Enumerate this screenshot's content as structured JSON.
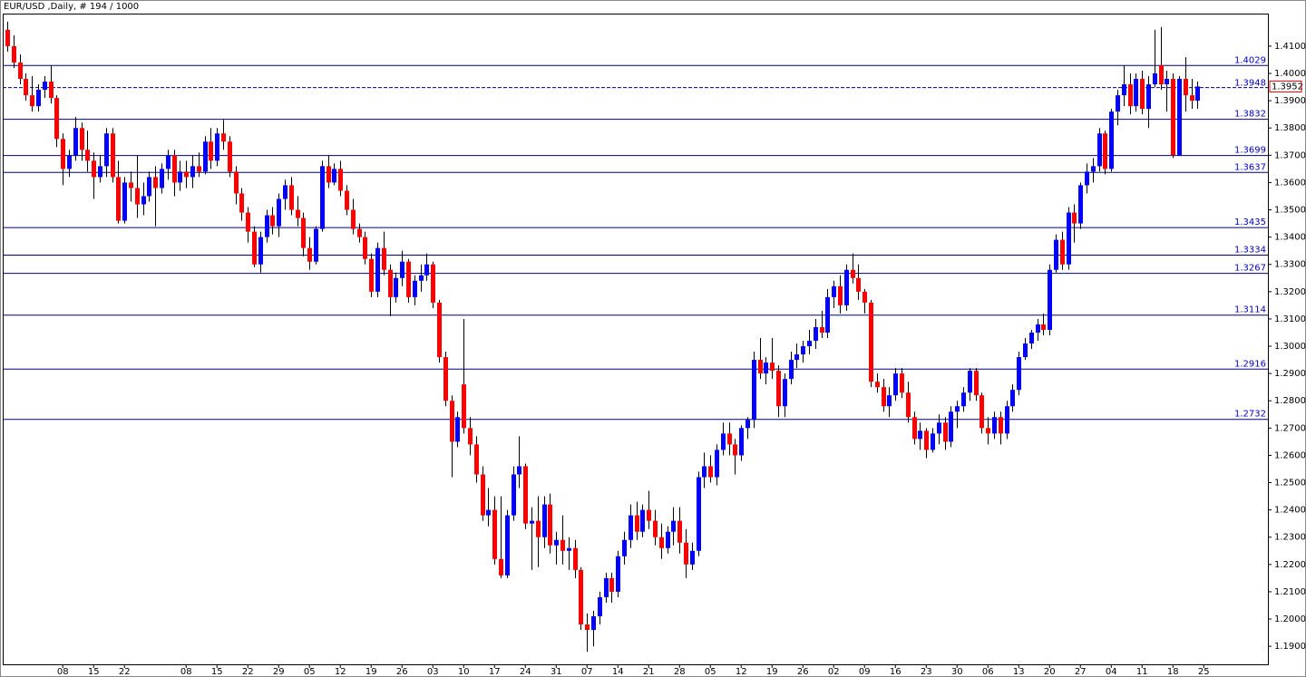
{
  "chart_data": {
    "type": "candlestick",
    "title": "EUR/USD ,Daily, # 194 / 1000",
    "up_color": "#0000ff",
    "down_color": "#ff0000",
    "wick_color": "#000000",
    "level_color": "#00007f",
    "ylim": [
      1.1834,
      1.4216
    ],
    "xlim": [
      -0.74,
      204.4
    ],
    "yticks": [
      {
        "value": 1.41,
        "label": "1.4100"
      },
      {
        "value": 1.4,
        "label": "1.4000"
      },
      {
        "value": 1.39,
        "label": "1.3900"
      },
      {
        "value": 1.38,
        "label": "1.3800"
      },
      {
        "value": 1.37,
        "label": "1.3700"
      },
      {
        "value": 1.36,
        "label": "1.3600"
      },
      {
        "value": 1.35,
        "label": "1.3500"
      },
      {
        "value": 1.34,
        "label": "1.3400"
      },
      {
        "value": 1.33,
        "label": "1.3300"
      },
      {
        "value": 1.32,
        "label": "1.3200"
      },
      {
        "value": 1.31,
        "label": "1.3100"
      },
      {
        "value": 1.3,
        "label": "1.3000"
      },
      {
        "value": 1.29,
        "label": "1.2900"
      },
      {
        "value": 1.28,
        "label": "1.2800"
      },
      {
        "value": 1.27,
        "label": "1.2700"
      },
      {
        "value": 1.26,
        "label": "1.2600"
      },
      {
        "value": 1.25,
        "label": "1.2500"
      },
      {
        "value": 1.24,
        "label": "1.2400"
      },
      {
        "value": 1.23,
        "label": "1.2300"
      },
      {
        "value": 1.22,
        "label": "1.2200"
      },
      {
        "value": 1.21,
        "label": "1.2100"
      },
      {
        "value": 1.2,
        "label": "1.2000"
      },
      {
        "value": 1.19,
        "label": "1.1900"
      }
    ],
    "xticks": [
      {
        "value": 9,
        "label": "08"
      },
      {
        "value": 14,
        "label": "15"
      },
      {
        "value": 19,
        "label": "22"
      },
      {
        "value": 29,
        "label": "08"
      },
      {
        "value": 34,
        "label": "15"
      },
      {
        "value": 39,
        "label": "22"
      },
      {
        "value": 44,
        "label": "29"
      },
      {
        "value": 49,
        "label": "05"
      },
      {
        "value": 54,
        "label": "12"
      },
      {
        "value": 59,
        "label": "19"
      },
      {
        "value": 64,
        "label": "26"
      },
      {
        "value": 69,
        "label": "03"
      },
      {
        "value": 74,
        "label": "10"
      },
      {
        "value": 79,
        "label": "17"
      },
      {
        "value": 84,
        "label": "24"
      },
      {
        "value": 89,
        "label": "31"
      },
      {
        "value": 94,
        "label": "07"
      },
      {
        "value": 99,
        "label": "14"
      },
      {
        "value": 104,
        "label": "21"
      },
      {
        "value": 109,
        "label": "28"
      },
      {
        "value": 114,
        "label": "05"
      },
      {
        "value": 119,
        "label": "12"
      },
      {
        "value": 124,
        "label": "19"
      },
      {
        "value": 129,
        "label": "26"
      },
      {
        "value": 134,
        "label": "02"
      },
      {
        "value": 139,
        "label": "09"
      },
      {
        "value": 144,
        "label": "16"
      },
      {
        "value": 149,
        "label": "23"
      },
      {
        "value": 154,
        "label": "30"
      },
      {
        "value": 159,
        "label": "06"
      },
      {
        "value": 164,
        "label": "13"
      },
      {
        "value": 169,
        "label": "20"
      },
      {
        "value": 174,
        "label": "27"
      },
      {
        "value": 179,
        "label": "04"
      },
      {
        "value": 184,
        "label": "11"
      },
      {
        "value": 189,
        "label": "18"
      },
      {
        "value": 194,
        "label": "25"
      }
    ],
    "levels": [
      1.4029,
      1.3832,
      1.3699,
      1.3637,
      1.3435,
      1.3334,
      1.3267,
      1.3114,
      1.2916,
      1.2732
    ],
    "bid_line": 1.3948,
    "current_price": 1.3952,
    "candles": [
      [
        1.416,
        1.419,
        1.408,
        1.41
      ],
      [
        1.41,
        1.414,
        1.402,
        1.404
      ],
      [
        1.404,
        1.407,
        1.396,
        1.398
      ],
      [
        1.398,
        1.4,
        1.39,
        1.392
      ],
      [
        1.392,
        1.399,
        1.386,
        1.388
      ],
      [
        1.388,
        1.396,
        1.386,
        1.394
      ],
      [
        1.394,
        1.399,
        1.391,
        1.397
      ],
      [
        1.397,
        1.403,
        1.389,
        1.391
      ],
      [
        1.391,
        1.392,
        1.373,
        1.376
      ],
      [
        1.376,
        1.378,
        1.359,
        1.365
      ],
      [
        1.365,
        1.372,
        1.362,
        1.37
      ],
      [
        1.37,
        1.384,
        1.368,
        1.38
      ],
      [
        1.38,
        1.382,
        1.368,
        1.372
      ],
      [
        1.372,
        1.379,
        1.364,
        1.368
      ],
      [
        1.368,
        1.371,
        1.354,
        1.362
      ],
      [
        1.362,
        1.37,
        1.36,
        1.366
      ],
      [
        1.366,
        1.38,
        1.362,
        1.378
      ],
      [
        1.378,
        1.38,
        1.36,
        1.362
      ],
      [
        1.362,
        1.368,
        1.345,
        1.346
      ],
      [
        1.346,
        1.362,
        1.345,
        1.36
      ],
      [
        1.36,
        1.364,
        1.353,
        1.358
      ],
      [
        1.358,
        1.37,
        1.347,
        1.352
      ],
      [
        1.352,
        1.36,
        1.348,
        1.355
      ],
      [
        1.355,
        1.364,
        1.353,
        1.362
      ],
      [
        1.362,
        1.366,
        1.344,
        1.358
      ],
      [
        1.358,
        1.367,
        1.356,
        1.365
      ],
      [
        1.365,
        1.372,
        1.361,
        1.37
      ],
      [
        1.37,
        1.372,
        1.355,
        1.36
      ],
      [
        1.36,
        1.368,
        1.357,
        1.364
      ],
      [
        1.364,
        1.368,
        1.358,
        1.362
      ],
      [
        1.362,
        1.37,
        1.358,
        1.366
      ],
      [
        1.366,
        1.371,
        1.362,
        1.364
      ],
      [
        1.364,
        1.377,
        1.363,
        1.375
      ],
      [
        1.375,
        1.38,
        1.365,
        1.368
      ],
      [
        1.368,
        1.38,
        1.366,
        1.378
      ],
      [
        1.378,
        1.383,
        1.372,
        1.375
      ],
      [
        1.375,
        1.377,
        1.362,
        1.364
      ],
      [
        1.364,
        1.366,
        1.352,
        1.356
      ],
      [
        1.356,
        1.358,
        1.346,
        1.349
      ],
      [
        1.349,
        1.351,
        1.338,
        1.342
      ],
      [
        1.342,
        1.344,
        1.329,
        1.33
      ],
      [
        1.33,
        1.342,
        1.327,
        1.34
      ],
      [
        1.34,
        1.35,
        1.338,
        1.348
      ],
      [
        1.348,
        1.351,
        1.341,
        1.344
      ],
      [
        1.344,
        1.356,
        1.34,
        1.354
      ],
      [
        1.354,
        1.361,
        1.35,
        1.359
      ],
      [
        1.359,
        1.362,
        1.348,
        1.35
      ],
      [
        1.35,
        1.355,
        1.344,
        1.347
      ],
      [
        1.347,
        1.349,
        1.333,
        1.336
      ],
      [
        1.336,
        1.34,
        1.328,
        1.331
      ],
      [
        1.331,
        1.344,
        1.33,
        1.343
      ],
      [
        1.343,
        1.368,
        1.342,
        1.366
      ],
      [
        1.366,
        1.37,
        1.358,
        1.36
      ],
      [
        1.36,
        1.367,
        1.359,
        1.365
      ],
      [
        1.365,
        1.368,
        1.355,
        1.357
      ],
      [
        1.357,
        1.359,
        1.348,
        1.35
      ],
      [
        1.35,
        1.354,
        1.341,
        1.343
      ],
      [
        1.343,
        1.345,
        1.338,
        1.34
      ],
      [
        1.34,
        1.342,
        1.33,
        1.332
      ],
      [
        1.332,
        1.334,
        1.318,
        1.32
      ],
      [
        1.32,
        1.338,
        1.318,
        1.336
      ],
      [
        1.336,
        1.342,
        1.326,
        1.328
      ],
      [
        1.328,
        1.33,
        1.311,
        1.318
      ],
      [
        1.318,
        1.327,
        1.316,
        1.325
      ],
      [
        1.325,
        1.335,
        1.322,
        1.331
      ],
      [
        1.331,
        1.332,
        1.316,
        1.318
      ],
      [
        1.318,
        1.326,
        1.315,
        1.324
      ],
      [
        1.324,
        1.33,
        1.32,
        1.326
      ],
      [
        1.326,
        1.334,
        1.324,
        1.33
      ],
      [
        1.33,
        1.331,
        1.314,
        1.316
      ],
      [
        1.316,
        1.317,
        1.294,
        1.296
      ],
      [
        1.296,
        1.298,
        1.278,
        1.28
      ],
      [
        1.28,
        1.282,
        1.252,
        1.265
      ],
      [
        1.265,
        1.276,
        1.263,
        1.274
      ],
      [
        1.286,
        1.31,
        1.268,
        1.27
      ],
      [
        1.27,
        1.274,
        1.26,
        1.264
      ],
      [
        1.264,
        1.267,
        1.25,
        1.253
      ],
      [
        1.253,
        1.256,
        1.236,
        1.238
      ],
      [
        1.238,
        1.248,
        1.234,
        1.24
      ],
      [
        1.24,
        1.245,
        1.22,
        1.222
      ],
      [
        1.222,
        1.245,
        1.215,
        1.216
      ],
      [
        1.216,
        1.24,
        1.215,
        1.238
      ],
      [
        1.238,
        1.256,
        1.236,
        1.253
      ],
      [
        1.253,
        1.267,
        1.248,
        1.256
      ],
      [
        1.256,
        1.257,
        1.233,
        1.235
      ],
      [
        1.235,
        1.241,
        1.218,
        1.236
      ],
      [
        1.236,
        1.245,
        1.219,
        1.23
      ],
      [
        1.23,
        1.245,
        1.226,
        1.242
      ],
      [
        1.242,
        1.246,
        1.224,
        1.227
      ],
      [
        1.227,
        1.232,
        1.22,
        1.229
      ],
      [
        1.229,
        1.238,
        1.22,
        1.225
      ],
      [
        1.225,
        1.23,
        1.218,
        1.226
      ],
      [
        1.226,
        1.229,
        1.215,
        1.218
      ],
      [
        1.218,
        1.219,
        1.196,
        1.198
      ],
      [
        1.198,
        1.202,
        1.188,
        1.196
      ],
      [
        1.196,
        1.203,
        1.19,
        1.201
      ],
      [
        1.201,
        1.21,
        1.198,
        1.208
      ],
      [
        1.208,
        1.217,
        1.206,
        1.215
      ],
      [
        1.215,
        1.217,
        1.206,
        1.21
      ],
      [
        1.21,
        1.225,
        1.208,
        1.223
      ],
      [
        1.223,
        1.232,
        1.22,
        1.229
      ],
      [
        1.229,
        1.242,
        1.226,
        1.238
      ],
      [
        1.238,
        1.243,
        1.229,
        1.232
      ],
      [
        1.232,
        1.242,
        1.23,
        1.24
      ],
      [
        1.24,
        1.247,
        1.233,
        1.236
      ],
      [
        1.236,
        1.24,
        1.227,
        1.23
      ],
      [
        1.23,
        1.235,
        1.222,
        1.226
      ],
      [
        1.226,
        1.234,
        1.224,
        1.232
      ],
      [
        1.232,
        1.241,
        1.227,
        1.236
      ],
      [
        1.236,
        1.241,
        1.224,
        1.228
      ],
      [
        1.228,
        1.233,
        1.215,
        1.22
      ],
      [
        1.22,
        1.228,
        1.218,
        1.225
      ],
      [
        1.225,
        1.254,
        1.223,
        1.252
      ],
      [
        1.252,
        1.261,
        1.248,
        1.256
      ],
      [
        1.256,
        1.26,
        1.25,
        1.252
      ],
      [
        1.252,
        1.264,
        1.249,
        1.262
      ],
      [
        1.262,
        1.272,
        1.26,
        1.268
      ],
      [
        1.268,
        1.272,
        1.26,
        1.264
      ],
      [
        1.264,
        1.266,
        1.253,
        1.26
      ],
      [
        1.26,
        1.271,
        1.258,
        1.27
      ],
      [
        1.27,
        1.274,
        1.266,
        1.273
      ],
      [
        1.273,
        1.298,
        1.27,
        1.295
      ],
      [
        1.295,
        1.303,
        1.288,
        1.29
      ],
      [
        1.29,
        1.296,
        1.286,
        1.294
      ],
      [
        1.294,
        1.303,
        1.288,
        1.291
      ],
      [
        1.291,
        1.293,
        1.274,
        1.278
      ],
      [
        1.278,
        1.29,
        1.274,
        1.288
      ],
      [
        1.288,
        1.298,
        1.286,
        1.295
      ],
      [
        1.295,
        1.301,
        1.292,
        1.297
      ],
      [
        1.297,
        1.302,
        1.294,
        1.3
      ],
      [
        1.3,
        1.306,
        1.297,
        1.302
      ],
      [
        1.302,
        1.31,
        1.299,
        1.307
      ],
      [
        1.307,
        1.313,
        1.303,
        1.305
      ],
      [
        1.305,
        1.321,
        1.303,
        1.318
      ],
      [
        1.318,
        1.324,
        1.314,
        1.322
      ],
      [
        1.322,
        1.326,
        1.312,
        1.315
      ],
      [
        1.315,
        1.33,
        1.313,
        1.328
      ],
      [
        1.328,
        1.334,
        1.323,
        1.325
      ],
      [
        1.325,
        1.33,
        1.317,
        1.32
      ],
      [
        1.32,
        1.321,
        1.312,
        1.316
      ],
      [
        1.316,
        1.317,
        1.285,
        1.287
      ],
      [
        1.287,
        1.29,
        1.283,
        1.285
      ],
      [
        1.285,
        1.288,
        1.276,
        1.278
      ],
      [
        1.278,
        1.285,
        1.274,
        1.282
      ],
      [
        1.282,
        1.292,
        1.28,
        1.29
      ],
      [
        1.29,
        1.292,
        1.281,
        1.283
      ],
      [
        1.283,
        1.287,
        1.272,
        1.274
      ],
      [
        1.274,
        1.276,
        1.264,
        1.266
      ],
      [
        1.266,
        1.272,
        1.262,
        1.269
      ],
      [
        1.269,
        1.27,
        1.259,
        1.262
      ],
      [
        1.262,
        1.27,
        1.261,
        1.268
      ],
      [
        1.268,
        1.275,
        1.264,
        1.272
      ],
      [
        1.272,
        1.274,
        1.262,
        1.265
      ],
      [
        1.265,
        1.278,
        1.263,
        1.276
      ],
      [
        1.276,
        1.28,
        1.27,
        1.278
      ],
      [
        1.278,
        1.285,
        1.276,
        1.283
      ],
      [
        1.283,
        1.292,
        1.28,
        1.291
      ],
      [
        1.291,
        1.292,
        1.28,
        1.282
      ],
      [
        1.282,
        1.283,
        1.268,
        1.27
      ],
      [
        1.27,
        1.274,
        1.264,
        1.268
      ],
      [
        1.268,
        1.276,
        1.266,
        1.274
      ],
      [
        1.274,
        1.276,
        1.264,
        1.268
      ],
      [
        1.268,
        1.28,
        1.266,
        1.278
      ],
      [
        1.278,
        1.286,
        1.276,
        1.284
      ],
      [
        1.284,
        1.298,
        1.282,
        1.296
      ],
      [
        1.296,
        1.303,
        1.295,
        1.301
      ],
      [
        1.301,
        1.306,
        1.299,
        1.305
      ],
      [
        1.305,
        1.31,
        1.302,
        1.308
      ],
      [
        1.308,
        1.312,
        1.304,
        1.306
      ],
      [
        1.306,
        1.33,
        1.304,
        1.328
      ],
      [
        1.328,
        1.341,
        1.327,
        1.339
      ],
      [
        1.339,
        1.342,
        1.328,
        1.33
      ],
      [
        1.33,
        1.351,
        1.328,
        1.349
      ],
      [
        1.349,
        1.352,
        1.338,
        1.345
      ],
      [
        1.345,
        1.36,
        1.343,
        1.359
      ],
      [
        1.359,
        1.367,
        1.356,
        1.364
      ],
      [
        1.364,
        1.369,
        1.36,
        1.366
      ],
      [
        1.366,
        1.38,
        1.364,
        1.378
      ],
      [
        1.378,
        1.379,
        1.363,
        1.365
      ],
      [
        1.365,
        1.387,
        1.364,
        1.386
      ],
      [
        1.386,
        1.394,
        1.381,
        1.392
      ],
      [
        1.392,
        1.403,
        1.388,
        1.396
      ],
      [
        1.396,
        1.4,
        1.385,
        1.388
      ],
      [
        1.388,
        1.4,
        1.386,
        1.398
      ],
      [
        1.398,
        1.401,
        1.385,
        1.387
      ],
      [
        1.387,
        1.399,
        1.38,
        1.396
      ],
      [
        1.396,
        1.416,
        1.395,
        1.4
      ],
      [
        1.403,
        1.417,
        1.394,
        1.396
      ],
      [
        1.396,
        1.401,
        1.386,
        1.398
      ],
      [
        1.398,
        1.4,
        1.369,
        1.37
      ],
      [
        1.37,
        1.399,
        1.37,
        1.398
      ],
      [
        1.398,
        1.406,
        1.386,
        1.392
      ],
      [
        1.392,
        1.398,
        1.387,
        1.39
      ],
      [
        1.39,
        1.397,
        1.387,
        1.3952
      ]
    ]
  }
}
